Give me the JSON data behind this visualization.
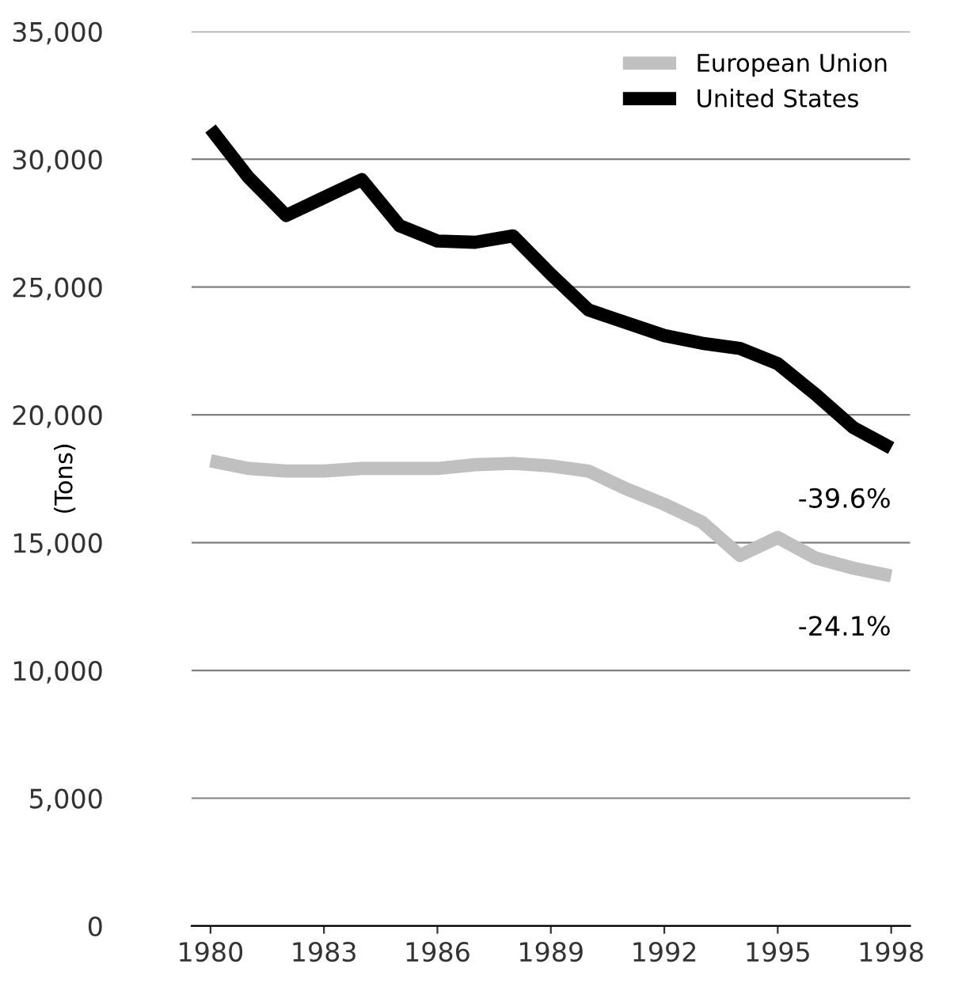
{
  "chart_data": {
    "type": "line",
    "ylabel": "(Tons)",
    "x": [
      1980,
      1981,
      1982,
      1983,
      1984,
      1985,
      1986,
      1987,
      1988,
      1989,
      1990,
      1991,
      1992,
      1993,
      1994,
      1995,
      1996,
      1997,
      1998
    ],
    "series": [
      {
        "name": "European Union",
        "color": "#c0c0c0",
        "values": [
          18200,
          17900,
          17800,
          17800,
          17900,
          17900,
          17900,
          18050,
          18100,
          18000,
          17800,
          17100,
          16500,
          15800,
          14500,
          15200,
          14400,
          14000,
          13700
        ]
      },
      {
        "name": "United States",
        "color": "#000000",
        "values": [
          31200,
          29300,
          27800,
          28500,
          29200,
          27400,
          26800,
          26750,
          27000,
          25500,
          24100,
          23600,
          23100,
          22800,
          22600,
          22000,
          20800,
          19500,
          18700
        ]
      }
    ],
    "xlim": [
      1979.5,
      1998.5
    ],
    "xticks": [
      1980,
      1983,
      1986,
      1989,
      1992,
      1995,
      1998
    ],
    "ylim": [
      0,
      35000
    ],
    "yticks": [
      {
        "value": 0,
        "label": "0"
      },
      {
        "value": 5000,
        "label": "5,000"
      },
      {
        "value": 10000,
        "label": "10,000"
      },
      {
        "value": 15000,
        "label": "15,000"
      },
      {
        "value": 20000,
        "label": "20,000"
      },
      {
        "value": 25000,
        "label": "25,000"
      },
      {
        "value": 30000,
        "label": "30,000"
      },
      {
        "value": 35000,
        "label": "35,000"
      }
    ],
    "grid": "y",
    "legend": "top right",
    "marker": "none",
    "line_style": "solid",
    "annotations": [
      {
        "text": "-39.6%",
        "x": 1998,
        "y": 18700
      },
      {
        "text": "-24.1%",
        "x": 1998,
        "y": 13700
      }
    ]
  }
}
